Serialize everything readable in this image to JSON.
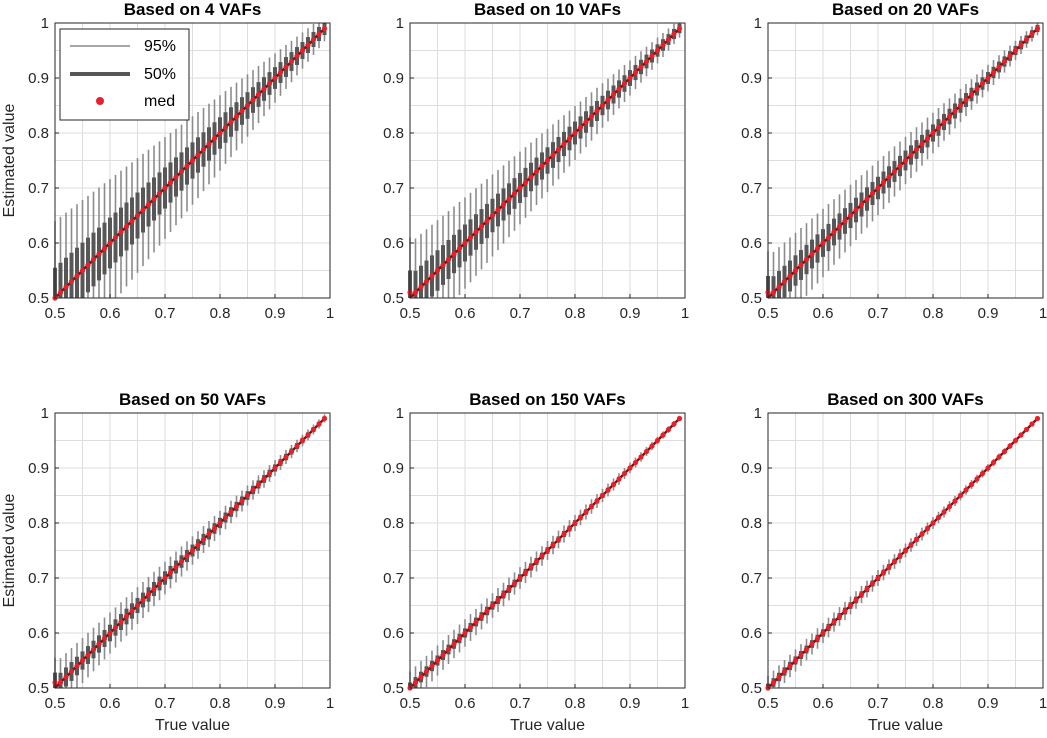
{
  "figure": {
    "y_axis_label": "Estimated value",
    "x_axis_label": "True value"
  },
  "legend": {
    "entries": [
      {
        "label": "95%"
      },
      {
        "label": "50%"
      },
      {
        "label": "med"
      }
    ]
  },
  "colors": {
    "whisker_95": "#8c8c8c",
    "box_50": "#575757",
    "median_marker": "#e8202a",
    "diagonal": "#7a1515",
    "grid": "#dddddd",
    "axis": "#262626"
  },
  "chart_data": [
    {
      "type": "box",
      "title": "Based on 4 VAFs",
      "n_vafs": 4,
      "xlabel": "",
      "ylabel": "Estimated value",
      "xlim": [
        0.5,
        1
      ],
      "ylim": [
        0.5,
        1
      ],
      "xticks": [
        "0.5",
        "0.6",
        "0.7",
        "0.8",
        "0.9",
        "1"
      ],
      "yticks": [
        "0.5",
        "0.6",
        "0.7",
        "0.8",
        "0.9",
        "1"
      ],
      "true_values": "0.50 to 0.99, step 0.01",
      "ci95_halfwidth_at_0.5": 0.14,
      "iqr_halfwidth_at_0.5": 0.055,
      "median_floor": 0.5,
      "grid": true,
      "legend": "top-left"
    },
    {
      "type": "box",
      "title": "Based on 10 VAFs",
      "n_vafs": 10,
      "xlabel": "",
      "ylabel": "",
      "xlim": [
        0.5,
        1
      ],
      "ylim": [
        0.5,
        1
      ],
      "xticks": [
        "0.5",
        "0.6",
        "0.7",
        "0.8",
        "0.9",
        "1"
      ],
      "yticks": [
        "0.5",
        "0.6",
        "0.7",
        "0.8",
        "0.9",
        "1"
      ],
      "true_values": "0.50 to 0.99, step 0.01",
      "ci95_halfwidth_at_0.5": 0.1,
      "iqr_halfwidth_at_0.5": 0.04,
      "median_floor": 0.51,
      "grid": true
    },
    {
      "type": "box",
      "title": "Based on 20 VAFs",
      "n_vafs": 20,
      "xlabel": "",
      "ylabel": "",
      "xlim": [
        0.5,
        1
      ],
      "ylim": [
        0.5,
        1
      ],
      "xticks": [
        "0.5",
        "0.6",
        "0.7",
        "0.8",
        "0.9",
        "1"
      ],
      "yticks": [
        "0.5",
        "0.6",
        "0.7",
        "0.8",
        "0.9",
        "1"
      ],
      "true_values": "0.50 to 0.99, step 0.01",
      "ci95_halfwidth_at_0.5": 0.075,
      "iqr_halfwidth_at_0.5": 0.03,
      "median_floor": 0.51,
      "grid": true
    },
    {
      "type": "box",
      "title": "Based on 50 VAFs",
      "n_vafs": 50,
      "xlabel": "True value",
      "ylabel": "Estimated value",
      "xlim": [
        0.5,
        1
      ],
      "ylim": [
        0.5,
        1
      ],
      "xticks": [
        "0.5",
        "0.6",
        "0.7",
        "0.8",
        "0.9",
        "1"
      ],
      "yticks": [
        "0.5",
        "0.6",
        "0.7",
        "0.8",
        "0.9",
        "1"
      ],
      "true_values": "0.50 to 0.99, step 0.01",
      "ci95_halfwidth_at_0.5": 0.045,
      "iqr_halfwidth_at_0.5": 0.018,
      "median_floor": 0.51,
      "grid": true
    },
    {
      "type": "box",
      "title": "Based on 150 VAFs",
      "n_vafs": 150,
      "xlabel": "True value",
      "ylabel": "",
      "xlim": [
        0.5,
        1
      ],
      "ylim": [
        0.5,
        1
      ],
      "xticks": [
        "0.5",
        "0.6",
        "0.7",
        "0.8",
        "0.9",
        "1"
      ],
      "yticks": [
        "0.5",
        "0.6",
        "0.7",
        "0.8",
        "0.9",
        "1"
      ],
      "true_values": "0.50 to 0.99, step 0.01",
      "ci95_halfwidth_at_0.5": 0.03,
      "iqr_halfwidth_at_0.5": 0.01,
      "median_floor": 0.5,
      "grid": true
    },
    {
      "type": "box",
      "title": "Based on 300 VAFs",
      "n_vafs": 300,
      "xlabel": "True value",
      "ylabel": "",
      "xlim": [
        0.5,
        1
      ],
      "ylim": [
        0.5,
        1
      ],
      "xticks": [
        "0.5",
        "0.6",
        "0.7",
        "0.8",
        "0.9",
        "1"
      ],
      "yticks": [
        "0.5",
        "0.6",
        "0.7",
        "0.8",
        "0.9",
        "1"
      ],
      "true_values": "0.50 to 0.99, step 0.01",
      "ci95_halfwidth_at_0.5": 0.022,
      "iqr_halfwidth_at_0.5": 0.008,
      "median_floor": 0.5,
      "grid": true
    }
  ]
}
